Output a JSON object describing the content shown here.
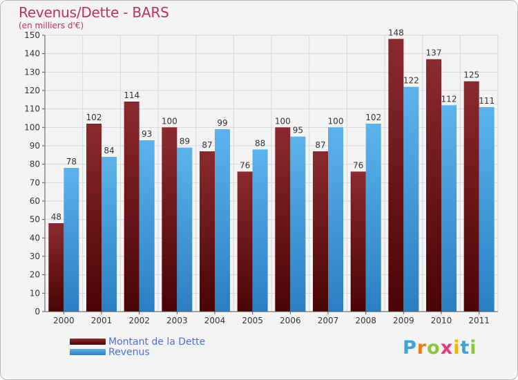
{
  "header": {
    "title": "Revenus/Dette - BARS",
    "subtitle": "(en milliers d'€)"
  },
  "logo": {
    "text": "Proxiti",
    "letters": [
      {
        "char": "P",
        "color": "#3aa3d8"
      },
      {
        "char": "r",
        "color": "#f07c1e"
      },
      {
        "char": "o",
        "color": "#8cc63e"
      },
      {
        "char": "x",
        "color": "#e83c7c"
      },
      {
        "char": "i",
        "color": "#f5b400"
      },
      {
        "char": "t",
        "color": "#3aa3d8"
      },
      {
        "char": "i",
        "color": "#8cc63e"
      }
    ]
  },
  "colors": {
    "dette": "#7a1a1e",
    "revenus": "#3f9de0",
    "grid": "#d8d8d8",
    "axis_text": "#333333"
  },
  "chart_data": {
    "type": "bar",
    "title": "Revenus/Dette - BARS",
    "subtitle": "(en milliers d'€)",
    "categories": [
      "2000",
      "2001",
      "2002",
      "2003",
      "2004",
      "2005",
      "2006",
      "2007",
      "2008",
      "2009",
      "2010",
      "2011"
    ],
    "series": [
      {
        "name": "Montant de la Dette",
        "values": [
          48,
          102,
          114,
          100,
          87,
          76,
          100,
          87,
          76,
          148,
          137,
          125
        ]
      },
      {
        "name": "Revenus",
        "values": [
          78,
          84,
          93,
          89,
          99,
          88,
          95,
          100,
          102,
          122,
          112,
          111
        ]
      }
    ],
    "ylim": [
      0,
      150
    ],
    "yticks": [
      0,
      10,
      20,
      30,
      40,
      50,
      60,
      70,
      80,
      90,
      100,
      110,
      120,
      130,
      140,
      150
    ],
    "grid": true,
    "legend": "bottom-left"
  }
}
